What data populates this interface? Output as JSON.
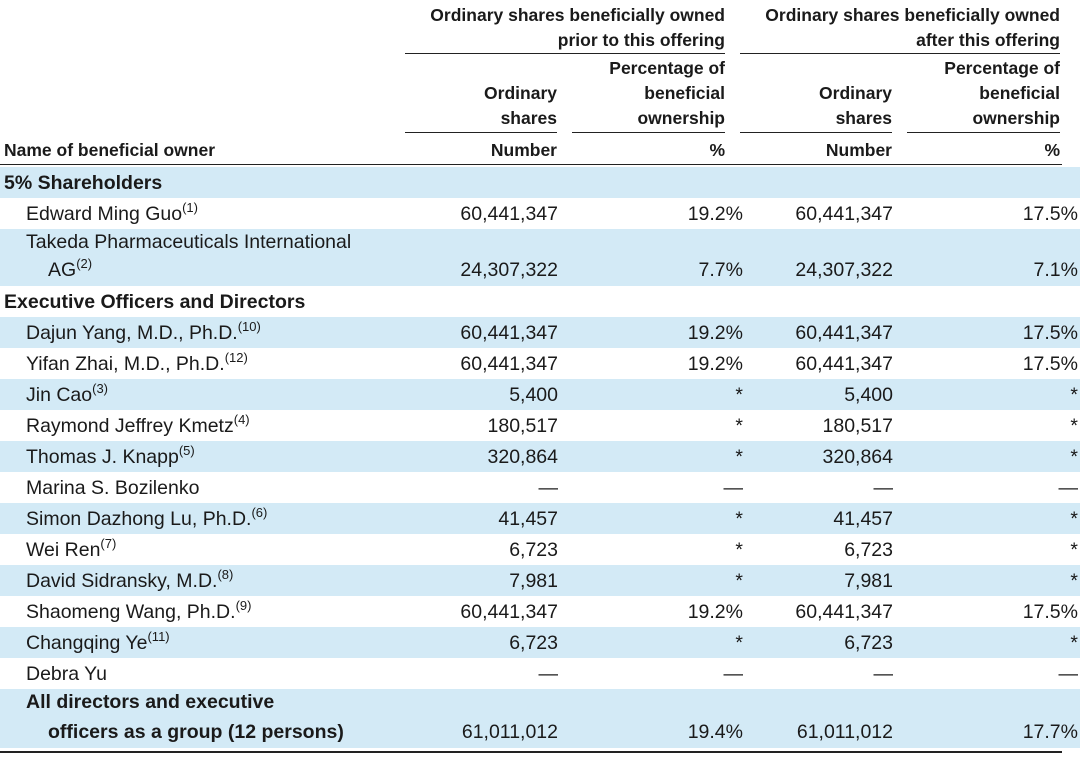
{
  "header": {
    "group_prior_line1": "Ordinary shares beneficially owned",
    "group_prior_line2": "prior to this offering",
    "group_after_line1": "Ordinary shares beneficially owned",
    "group_after_line2": "after this offering",
    "ordinary_line1": "Ordinary",
    "ordinary_line2": "shares",
    "percentage_line1": "Percentage of",
    "percentage_line2": "beneficial",
    "percentage_line3": "ownership",
    "name_col": "Name of beneficial owner",
    "unit_number": "Number",
    "unit_percent": "%"
  },
  "rows": [
    {
      "type": "section",
      "name": "5% Shareholders"
    },
    {
      "type": "row",
      "name": "Edward Ming Guo",
      "note": "(1)",
      "shares_prior": "60,441,347",
      "pct_prior": "19.2%",
      "shares_after": "60,441,347",
      "pct_after": "17.5%"
    },
    {
      "type": "row2",
      "name": "Takeda Pharmaceuticals International",
      "name2": "AG",
      "note": "(2)",
      "shares_prior": "24,307,322",
      "pct_prior": "7.7%",
      "shares_after": "24,307,322",
      "pct_after": "7.1%"
    },
    {
      "type": "section",
      "name": "Executive Officers and Directors"
    },
    {
      "type": "row",
      "name": "Dajun Yang, M.D., Ph.D.",
      "note": "(10)",
      "shares_prior": "60,441,347",
      "pct_prior": "19.2%",
      "shares_after": "60,441,347",
      "pct_after": "17.5%"
    },
    {
      "type": "row",
      "name": "Yifan Zhai, M.D., Ph.D.",
      "note": "(12)",
      "shares_prior": "60,441,347",
      "pct_prior": "19.2%",
      "shares_after": "60,441,347",
      "pct_after": "17.5%"
    },
    {
      "type": "row",
      "name": "Jin Cao",
      "note": "(3)",
      "shares_prior": "5,400",
      "pct_prior": "*",
      "shares_after": "5,400",
      "pct_after": "*"
    },
    {
      "type": "row",
      "name": "Raymond Jeffrey Kmetz",
      "note": "(4)",
      "shares_prior": "180,517",
      "pct_prior": "*",
      "shares_after": "180,517",
      "pct_after": "*"
    },
    {
      "type": "row",
      "name": "Thomas J. Knapp",
      "note": "(5)",
      "shares_prior": "320,864",
      "pct_prior": "*",
      "shares_after": "320,864",
      "pct_after": "*"
    },
    {
      "type": "row",
      "name": "Marina S. Bozilenko",
      "note": "",
      "shares_prior": "—",
      "pct_prior": "—",
      "shares_after": "—",
      "pct_after": "—"
    },
    {
      "type": "row",
      "name": "Simon Dazhong Lu, Ph.D.",
      "note": "(6)",
      "shares_prior": "41,457",
      "pct_prior": "*",
      "shares_after": "41,457",
      "pct_after": "*"
    },
    {
      "type": "row",
      "name": "Wei Ren",
      "note": "(7)",
      "shares_prior": "6,723",
      "pct_prior": "*",
      "shares_after": "6,723",
      "pct_after": "*"
    },
    {
      "type": "row",
      "name": "David Sidransky, M.D.",
      "note": "(8)",
      "shares_prior": "7,981",
      "pct_prior": "*",
      "shares_after": "7,981",
      "pct_after": "*"
    },
    {
      "type": "row",
      "name": "Shaomeng Wang, Ph.D.",
      "note": "(9)",
      "shares_prior": "60,441,347",
      "pct_prior": "19.2%",
      "shares_after": "60,441,347",
      "pct_after": "17.5%"
    },
    {
      "type": "row",
      "name": "Changqing Ye",
      "note": "(11)",
      "shares_prior": "6,723",
      "pct_prior": "*",
      "shares_after": "6,723",
      "pct_after": "*"
    },
    {
      "type": "row",
      "name": "Debra Yu",
      "note": "",
      "shares_prior": "—",
      "pct_prior": "—",
      "shares_after": "—",
      "pct_after": "—"
    },
    {
      "type": "total",
      "name": "All directors and executive",
      "name2": "officers as a group (12 persons)",
      "shares_prior": "61,011,012",
      "pct_prior": "19.4%",
      "shares_after": "61,011,012",
      "pct_after": "17.7%"
    }
  ],
  "colors": {
    "band": "#d3eaf6",
    "rule": "#222222",
    "text": "#1a1a1a"
  }
}
